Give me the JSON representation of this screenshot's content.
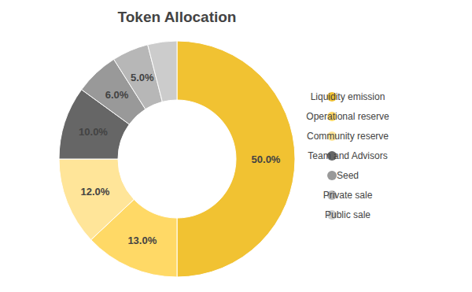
{
  "chart_data": {
    "type": "donut",
    "title": "Token Allocation",
    "categories": [
      "Liquidity emission",
      "Operational reserve",
      "Community reserve",
      "Team and Advisors",
      "Seed",
      "Private sale",
      "Public sale"
    ],
    "values": [
      50,
      13,
      12,
      10,
      6,
      5,
      4
    ],
    "value_labels": [
      "50.0%",
      "13.0%",
      "12.0%",
      "10.0%",
      "6.0%",
      "5.0%",
      null
    ],
    "colors": [
      "#f1c232",
      "#ffd966",
      "#ffe599",
      "#666666",
      "#999999",
      "#b7b7b7",
      "#cccccc"
    ],
    "data_labels": true,
    "legend": "right"
  }
}
